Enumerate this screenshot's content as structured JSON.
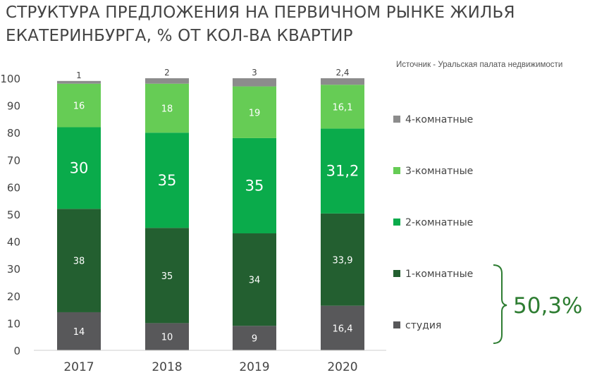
{
  "title": "СТРУКТУРА ПРЕДЛОЖЕНИЯ НА ПЕРВИЧНОМ РЫНКЕ ЖИЛЬЯ ЕКАТЕРИНБУРГА, % ОТ КОЛ-ВА КВАРТИР",
  "source": "Источник - Уральская  палата недвижимости",
  "highlight_value": "50,3%",
  "colors": {
    "studio": "#58585a",
    "one_room": "#235f30",
    "two_room": "#0aab4b",
    "three_room": "#66cc55",
    "four_room": "#8c8c8c",
    "bracket": "#2e7d32"
  },
  "chart_data": {
    "type": "bar",
    "stacked": true,
    "categories": [
      "2017",
      "2018",
      "2019",
      "2020"
    ],
    "ylim": [
      0,
      100
    ],
    "yticks": [
      0,
      10,
      20,
      30,
      40,
      50,
      60,
      70,
      80,
      90,
      100
    ],
    "grid": false,
    "legend_position": "right",
    "series": [
      {
        "key": "studio",
        "name": "студия",
        "values": [
          14,
          10,
          9,
          16.4
        ],
        "labels": [
          "14",
          "10",
          "9",
          "16,4"
        ]
      },
      {
        "key": "one_room",
        "name": "1-комнатные",
        "values": [
          38,
          35,
          34,
          33.9
        ],
        "labels": [
          "38",
          "35",
          "34",
          "33,9"
        ]
      },
      {
        "key": "two_room",
        "name": "2-комнатные",
        "values": [
          30,
          35,
          35,
          31.2
        ],
        "labels": [
          "30",
          "35",
          "35",
          "31,2"
        ]
      },
      {
        "key": "three_room",
        "name": "3-комнатные",
        "values": [
          16,
          18,
          19,
          16.1
        ],
        "labels": [
          "16",
          "18",
          "19",
          "16,1"
        ]
      },
      {
        "key": "four_room",
        "name": "4-комнатные",
        "values": [
          1,
          2,
          3,
          2.4
        ],
        "labels": [
          "1",
          "2",
          "3",
          "2,4"
        ]
      }
    ],
    "legend_order": [
      "four_room",
      "three_room",
      "two_room",
      "one_room",
      "studio"
    ]
  }
}
